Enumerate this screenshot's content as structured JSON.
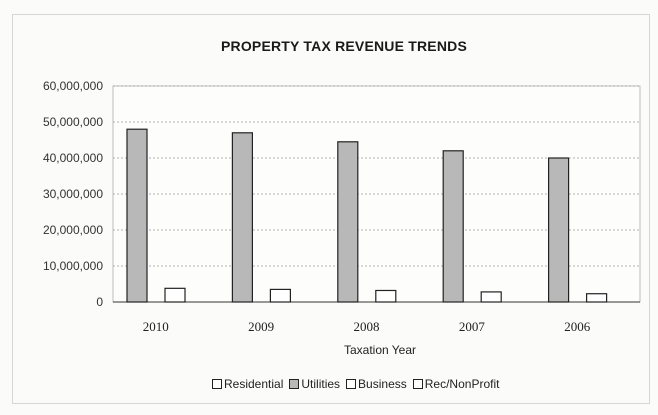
{
  "chart_data": {
    "type": "bar",
    "title": "PROPERTY TAX REVENUE TRENDS",
    "xlabel": "Taxation Year",
    "ylabel": "",
    "categories": [
      "2010",
      "2009",
      "2008",
      "2007",
      "2006"
    ],
    "ylim": [
      0,
      60000000
    ],
    "yticks": [
      "0",
      "10,000,000",
      "20,000,000",
      "30,000,000",
      "40,000,000",
      "50,000,000",
      "60,000,000"
    ],
    "grid": true,
    "legend_position": "bottom",
    "series": [
      {
        "name": "Residential",
        "color": "#ffffff",
        "values": [
          0,
          0,
          0,
          0,
          0
        ]
      },
      {
        "name": "Utilities",
        "color": "#b8b8b8",
        "values": [
          48000000,
          47000000,
          44500000,
          42000000,
          40000000
        ]
      },
      {
        "name": "Business",
        "color": "#ffffff",
        "values": [
          3800000,
          3500000,
          3200000,
          2800000,
          2300000
        ]
      },
      {
        "name": "Rec/NonProfit",
        "color": "#ffffff",
        "values": [
          0,
          0,
          0,
          0,
          0
        ]
      }
    ]
  }
}
